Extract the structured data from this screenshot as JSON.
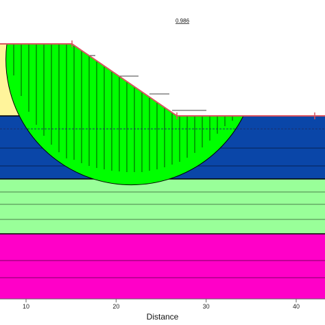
{
  "factor_of_safety": "0.986",
  "x_axis": {
    "title": "Distance",
    "ticks": [
      {
        "value": 10,
        "label": "10"
      },
      {
        "value": 20,
        "label": "20"
      },
      {
        "value": 30,
        "label": "30"
      },
      {
        "value": 40,
        "label": "40"
      }
    ]
  },
  "colors": {
    "top_soil": "#fff49b",
    "slip_mass": "#00ff00",
    "sand_layer": "#0a46a8",
    "clay_layer": "#99ff99",
    "bedrock": "#ff00c8",
    "ground_line": "#d9535f",
    "outline": "#000000"
  }
}
